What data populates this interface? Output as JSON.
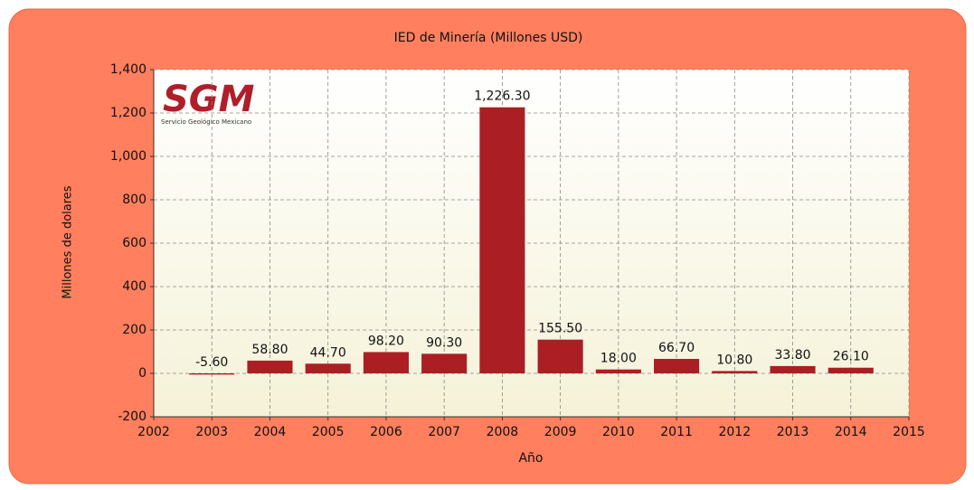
{
  "chart_data": {
    "type": "bar",
    "title": "IED de Minería (Millones USD)",
    "x_label": "Año",
    "y_label": "Millones de dolares",
    "x": [
      2003,
      2004,
      2005,
      2006,
      2007,
      2008,
      2009,
      2010,
      2011,
      2012,
      2013,
      2014
    ],
    "values": [
      -5.6,
      58.8,
      44.7,
      98.2,
      90.3,
      1226.3,
      155.5,
      18.0,
      66.7,
      10.8,
      33.8,
      26.1
    ],
    "value_labels": [
      "-5.60",
      "58.80",
      "44.70",
      "98.20",
      "90.30",
      "1,226.30",
      "155.50",
      "18.00",
      "66.70",
      "10.80",
      "33.80",
      "26.10"
    ],
    "color": "#ab1f24",
    "xlim": [
      2002,
      2015
    ],
    "xticks": [
      2002,
      2003,
      2004,
      2005,
      2006,
      2007,
      2008,
      2009,
      2010,
      2011,
      2012,
      2013,
      2014,
      2015
    ],
    "ylim": [
      -200,
      1400
    ],
    "yticks": [
      -200,
      0,
      200,
      400,
      600,
      800,
      {
        "value": 1000,
        "label": "1,000"
      },
      {
        "value": 1200,
        "label": "1,200"
      },
      {
        "value": 1400,
        "label": "1,400"
      }
    ],
    "grid": true
  },
  "logo": {
    "title": "SGM",
    "subtitle": "Servicio Geológico Mexicano"
  }
}
